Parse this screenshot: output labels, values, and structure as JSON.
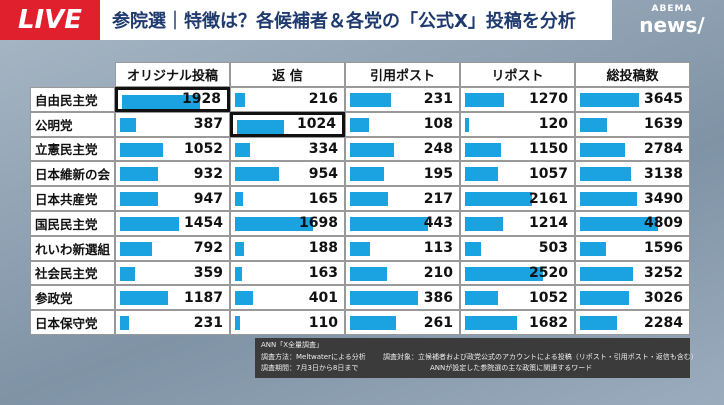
{
  "header": {
    "live": "LIVE",
    "title": "参院選｜特徴は？各候補者＆各党の「公式X」投稿を分析",
    "logo_top": "ABEMA",
    "logo_bottom": "news/"
  },
  "table": {
    "columns": [
      "オリジナル投稿",
      "返 信",
      "引用ポスト",
      "リポスト",
      "総投稿数"
    ],
    "rows": [
      {
        "name": "自由民主党",
        "values": [
          1928,
          216,
          231,
          1270,
          3645
        ]
      },
      {
        "name": "公明党",
        "values": [
          387,
          1024,
          108,
          120,
          1639
        ]
      },
      {
        "name": "立憲民主党",
        "values": [
          1052,
          334,
          248,
          1150,
          2784
        ]
      },
      {
        "name": "日本維新の会",
        "values": [
          932,
          954,
          195,
          1057,
          3138
        ]
      },
      {
        "name": "日本共産党",
        "values": [
          947,
          165,
          217,
          2161,
          3490
        ]
      },
      {
        "name": "国民民主党",
        "values": [
          1454,
          1698,
          443,
          1214,
          4809
        ]
      },
      {
        "name": "れいわ新選組",
        "values": [
          792,
          188,
          113,
          503,
          1596
        ]
      },
      {
        "name": "社会民主党",
        "values": [
          359,
          163,
          210,
          2520,
          3252
        ]
      },
      {
        "name": "参政党",
        "values": [
          1187,
          401,
          386,
          1052,
          3026
        ]
      },
      {
        "name": "日本保守党",
        "values": [
          231,
          110,
          261,
          1682,
          2284
        ]
      }
    ]
  },
  "source": {
    "title": "ANN「X全量調査」",
    "method": "調査方法：Meltwaterによる分析",
    "period": "調査期間：7月3日から8日まで",
    "target": "調査対象：立候補者および政党公式のアカウントによる投稿（リポスト・引用ポスト・返信も含む）",
    "words": "ANNが設定した参院選の主な政策に関連するワード"
  }
}
